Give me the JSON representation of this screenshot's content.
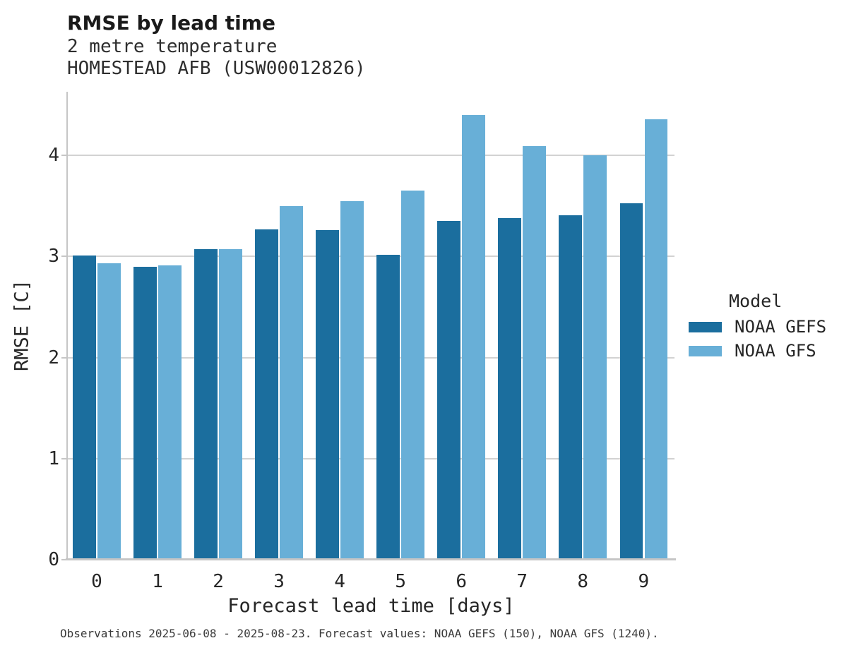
{
  "header": {
    "title": "RMSE by lead time",
    "subtitle_line1": "2 metre temperature",
    "subtitle_line2": "HOMESTEAD AFB (USW00012826)"
  },
  "legend": {
    "title": "Model",
    "entries": [
      {
        "label": "NOAA GEFS",
        "color": "#1b6e9e"
      },
      {
        "label": "NOAA GFS",
        "color": "#68afd7"
      }
    ]
  },
  "footnote": "Observations 2025-06-08 - 2025-08-23. Forecast values: NOAA GEFS (150), NOAA GFS (1240).",
  "chart_data": {
    "type": "bar",
    "title": "RMSE by lead time",
    "subtitle": "2 metre temperature — HOMESTEAD AFB (USW00012826)",
    "xlabel": "Forecast lead time [days]",
    "ylabel": "RMSE [C]",
    "categories": [
      "0",
      "1",
      "2",
      "3",
      "4",
      "5",
      "6",
      "7",
      "8",
      "9"
    ],
    "series": [
      {
        "name": "NOAA GEFS",
        "color": "#1b6e9e",
        "values": [
          3.01,
          2.9,
          3.07,
          3.27,
          3.26,
          3.02,
          3.35,
          3.38,
          3.41,
          3.53
        ]
      },
      {
        "name": "NOAA GFS",
        "color": "#68afd7",
        "values": [
          2.93,
          2.91,
          3.07,
          3.5,
          3.55,
          3.65,
          4.4,
          4.09,
          4.0,
          4.36
        ]
      }
    ],
    "ylim": [
      0,
      4.63
    ],
    "yticks": [
      0,
      1,
      2,
      3,
      4
    ],
    "grid": true,
    "grid_color": "#d2d2d2",
    "legend_position": "right",
    "text_color": "#262626"
  }
}
